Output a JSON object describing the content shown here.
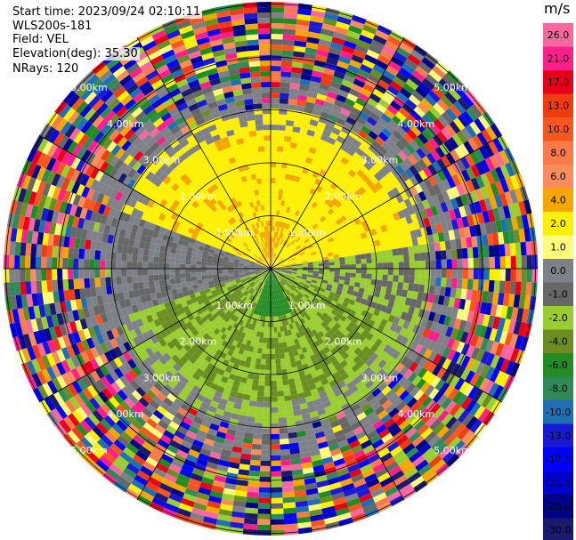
{
  "header": {
    "start_time": "Start time: 2023/09/24 02:10:11",
    "instrument": "WLS200s-181",
    "field": "Field: VEL",
    "elevation": "Elevation(deg): 35.30",
    "nrays": "NRays: 120"
  },
  "colorbar": {
    "title": "m/s",
    "ticks": [
      "26.0",
      "21.0",
      "17.0",
      "13.0",
      "10.0",
      "8.0",
      "6.0",
      "4.0",
      "2.0",
      "1.0",
      "0.0",
      "-1.0",
      "-2.0",
      "-4.0",
      "-6.0",
      "-8.0",
      "-10.0",
      "-13.0",
      "-17.0",
      "-21.0",
      "-26.0",
      "-30.0"
    ],
    "colors": [
      "#f768a1",
      "#ff1f8c",
      "#e8001a",
      "#f03c10",
      "#f7561e",
      "#fa7a4a",
      "#f98d5c",
      "#f5a700",
      "#fdf000",
      "#fffc7a",
      "#7e8188",
      "#676767",
      "#9acd32",
      "#6b8e23",
      "#228b22",
      "#2e8b57",
      "#1f6fb4",
      "#1a1ad6",
      "#0000ff",
      "#0000cd",
      "#000088",
      "#1a1a6e"
    ]
  },
  "chart_data": {
    "type": "heatmap",
    "projection": "polar PPI",
    "field": "VEL",
    "units": "m/s",
    "range_ring_labels": [
      "1.00km",
      "2.00km",
      "3.00km",
      "4.00km",
      "5.00km"
    ],
    "color_limits": [
      -30.0,
      26.0
    ]
  }
}
